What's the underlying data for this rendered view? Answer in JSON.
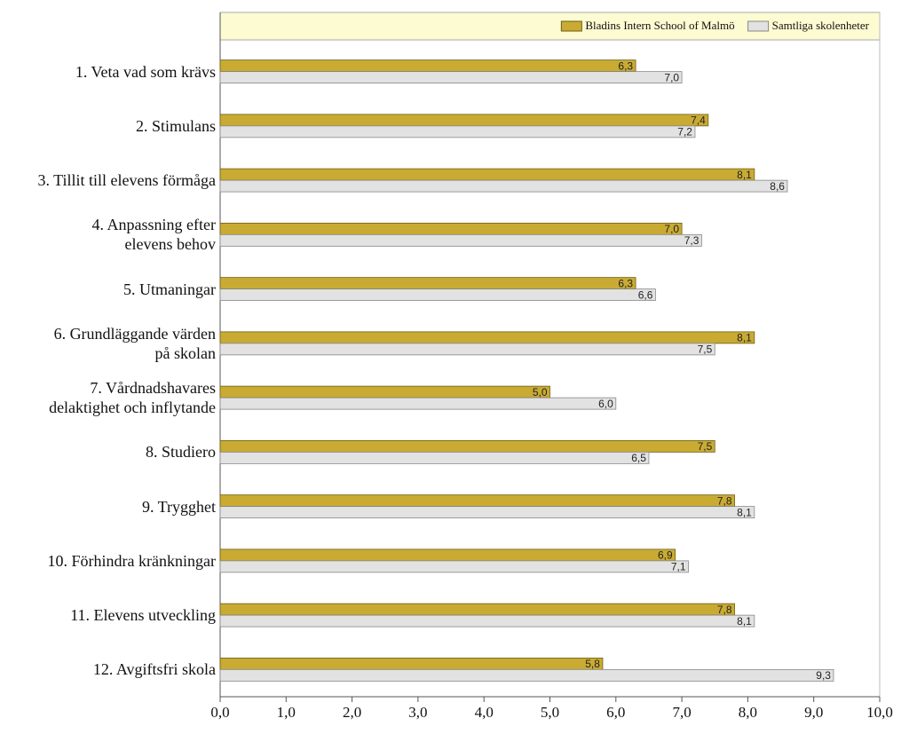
{
  "chart_data": {
    "type": "bar",
    "orientation": "horizontal",
    "categories": [
      "1. Veta vad som krävs",
      "2. Stimulans",
      "3. Tillit till elevens förmåga",
      "4. Anpassning efter\nelevens behov",
      "5. Utmaningar",
      "6. Grundläggande värden\npå skolan",
      "7. Vårdnadshavares\ndelaktighet och inflytande",
      "8. Studiero",
      "9. Trygghet",
      "10. Förhindra kränkningar",
      "11. Elevens utveckling",
      "12. Avgiftsfri skola"
    ],
    "series": [
      {
        "name": "Bladins Intern School of Malmö",
        "color": "#c9ab34",
        "values": [
          6.3,
          7.4,
          8.1,
          7.0,
          6.3,
          8.1,
          5.0,
          7.5,
          7.8,
          6.9,
          7.8,
          5.8
        ],
        "value_labels": [
          "6,3",
          "7,4",
          "8,1",
          "7,0",
          "6,3",
          "8,1",
          "5,0",
          "7,5",
          "7,8",
          "6,9",
          "7,8",
          "5,8"
        ]
      },
      {
        "name": "Samtliga skolenheter",
        "color": "#e2e2e2",
        "values": [
          7.0,
          7.2,
          8.6,
          7.3,
          6.6,
          7.5,
          6.0,
          6.5,
          8.1,
          7.1,
          8.1,
          9.3
        ],
        "value_labels": [
          "7,0",
          "7,2",
          "8,6",
          "7,3",
          "6,6",
          "7,5",
          "6,0",
          "6,5",
          "8,1",
          "7,1",
          "8,1",
          "9,3"
        ]
      }
    ],
    "xlim": [
      0,
      10
    ],
    "xticks": [
      {
        "value": 0,
        "label": "0,0"
      },
      {
        "value": 1,
        "label": "1,0"
      },
      {
        "value": 2,
        "label": "2,0"
      },
      {
        "value": 3,
        "label": "3,0"
      },
      {
        "value": 4,
        "label": "4,0"
      },
      {
        "value": 5,
        "label": "5,0"
      },
      {
        "value": 6,
        "label": "6,0"
      },
      {
        "value": 7,
        "label": "7,0"
      },
      {
        "value": 8,
        "label": "8,0"
      },
      {
        "value": 9,
        "label": "9,0"
      },
      {
        "value": 10,
        "label": "10,0"
      }
    ],
    "legend": "top-right"
  }
}
